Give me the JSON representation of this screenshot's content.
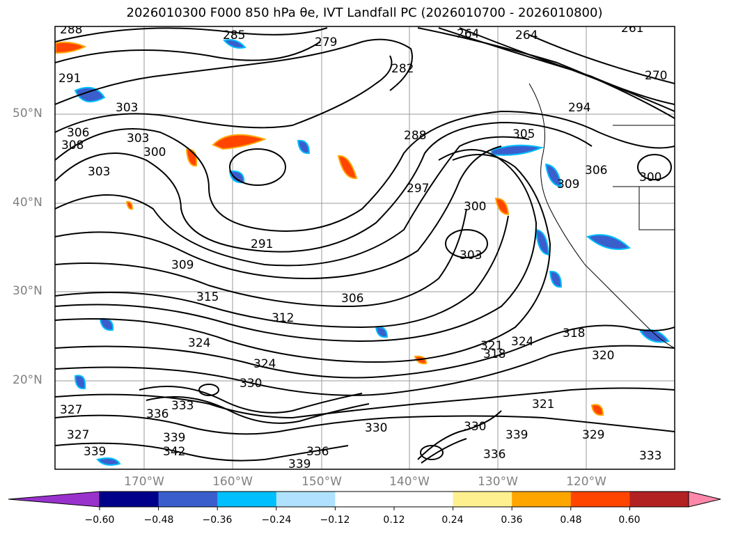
{
  "title": "2026010300 F000 850 hPa θe, IVT Landfall PC (2026010700 - 2026010800)",
  "map": {
    "lat_labels": [
      "50°N",
      "40°N",
      "30°N",
      "20°N"
    ],
    "lon_labels": [
      "170°W",
      "160°W",
      "150°W",
      "140°W",
      "130°W",
      "120°W"
    ],
    "contour_labels": [
      "288",
      "285",
      "279",
      "264",
      "264",
      "261",
      "282",
      "270",
      "291",
      "303",
      "306",
      "308",
      "303",
      "300",
      "303",
      "288",
      "294",
      "297",
      "300",
      "303",
      "305",
      "309",
      "306",
      "300",
      "291",
      "309",
      "315",
      "312",
      "306",
      "318",
      "321",
      "324",
      "324",
      "318",
      "324",
      "320",
      "330",
      "333",
      "336",
      "339",
      "342",
      "339",
      "336",
      "330",
      "327",
      "330",
      "339",
      "336",
      "333",
      "327",
      "329",
      "339",
      "321"
    ],
    "contour_color": "#000000",
    "shading_colors": [
      "#9932cc",
      "#00008b",
      "#3a5fcd",
      "#00bfff",
      "#b0e2ff",
      "#ffffff",
      "#fff08f",
      "#ffa500",
      "#ff4500",
      "#b22222",
      "#ff88aa"
    ]
  },
  "colorbar": {
    "ticks": [
      "−0.60",
      "−0.48",
      "−0.36",
      "−0.24",
      "−0.12",
      "0.12",
      "0.24",
      "0.36",
      "0.48",
      "0.60"
    ],
    "colors": [
      "#00008b",
      "#3a5fcd",
      "#00bfff",
      "#b0e2ff",
      "#ffffff",
      "#ffffff",
      "#fff08f",
      "#ffa500",
      "#ff4500",
      "#b22222"
    ],
    "under_color": "#9932cc",
    "over_color": "#ff88aa"
  }
}
